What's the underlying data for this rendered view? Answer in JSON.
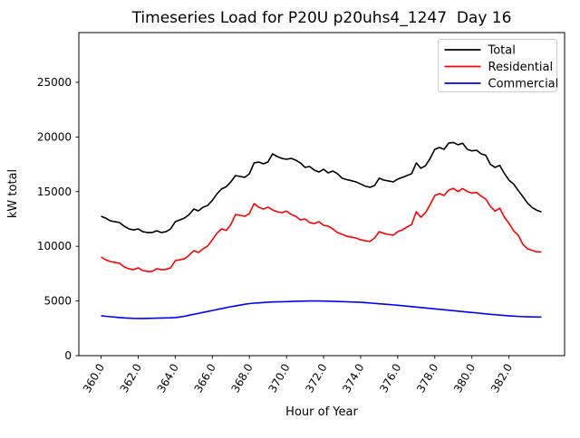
{
  "figure": {
    "title": "Timeseries Load for P20U p20uhs4_1247  Day 16",
    "xlabel": "Hour of Year",
    "ylabel": "kW total"
  },
  "chart_data": {
    "type": "line",
    "title": "Timeseries Load for P20U p20uhs4_1247  Day 16",
    "xlabel": "Hour of Year",
    "ylabel": "kW total",
    "xlim": [
      358.8,
      385.0
    ],
    "ylim": [
      0,
      29550
    ],
    "grid": false,
    "legend_position": "upper right",
    "xticks": {
      "values": [
        360,
        362,
        364,
        366,
        368,
        370,
        372,
        374,
        376,
        378,
        380,
        382
      ],
      "labels": [
        "360.0",
        "362.0",
        "364.0",
        "366.0",
        "368.0",
        "370.0",
        "372.0",
        "374.0",
        "376.0",
        "378.0",
        "380.0",
        "382.0"
      ]
    },
    "yticks": {
      "values": [
        0,
        5000,
        10000,
        15000,
        20000,
        25000
      ],
      "labels": [
        "0",
        "5000",
        "10000",
        "15000",
        "20000",
        "25000"
      ]
    },
    "x": {
      "start": 360.0,
      "step": 0.25,
      "count": 96,
      "unit": "hour of year"
    },
    "series": [
      {
        "name": "Total",
        "color": "#000000",
        "values": [
          12750,
          12580,
          12330,
          12250,
          12170,
          11840,
          11590,
          11500,
          11590,
          11340,
          11260,
          11260,
          11420,
          11260,
          11340,
          11590,
          12250,
          12420,
          12580,
          12910,
          13410,
          13240,
          13580,
          13740,
          14200,
          14800,
          15250,
          15450,
          15900,
          16470,
          16390,
          16310,
          16640,
          17630,
          17710,
          17550,
          17710,
          18460,
          18210,
          18040,
          17960,
          18040,
          17880,
          17630,
          17220,
          17300,
          16970,
          16800,
          17050,
          16720,
          16890,
          16640,
          16230,
          16100,
          16000,
          15890,
          15700,
          15500,
          15400,
          15560,
          16230,
          16060,
          15980,
          15890,
          16150,
          16310,
          16470,
          16640,
          17630,
          17140,
          17380,
          18040,
          18870,
          19040,
          18870,
          19450,
          19500,
          19290,
          19430,
          18870,
          18730,
          18790,
          18460,
          18320,
          17490,
          17220,
          17410,
          16670,
          16050,
          15700,
          15100,
          14550,
          13950,
          13550,
          13300,
          13150
        ]
      },
      {
        "name": "Residential",
        "color": "#ff0000",
        "values": [
          9020,
          8770,
          8610,
          8520,
          8440,
          8110,
          7950,
          7860,
          8030,
          7780,
          7700,
          7700,
          7950,
          7860,
          7890,
          8030,
          8690,
          8770,
          8860,
          9190,
          9600,
          9440,
          9770,
          10020,
          10600,
          11200,
          11600,
          11450,
          12000,
          12910,
          12830,
          12750,
          13000,
          13910,
          13580,
          13410,
          13580,
          13330,
          13160,
          13080,
          13220,
          12910,
          12750,
          12420,
          12500,
          12170,
          12090,
          12250,
          11920,
          11840,
          11590,
          11260,
          11100,
          10930,
          10840,
          10760,
          10600,
          10510,
          10450,
          10760,
          11340,
          11180,
          11090,
          11010,
          11340,
          11510,
          11760,
          12000,
          13160,
          12660,
          13080,
          13820,
          14650,
          14820,
          14650,
          15150,
          15300,
          15010,
          15290,
          15010,
          14870,
          14930,
          14590,
          14320,
          13640,
          13220,
          13490,
          12660,
          12110,
          11420,
          11010,
          10180,
          9770,
          9630,
          9490,
          9490
        ]
      },
      {
        "name": "Commercial",
        "color": "#0000ff",
        "values": [
          3650,
          3600,
          3560,
          3520,
          3480,
          3450,
          3430,
          3410,
          3400,
          3400,
          3410,
          3420,
          3430,
          3440,
          3450,
          3460,
          3480,
          3530,
          3600,
          3700,
          3780,
          3870,
          3960,
          4040,
          4130,
          4220,
          4300,
          4390,
          4480,
          4550,
          4620,
          4700,
          4760,
          4800,
          4830,
          4860,
          4890,
          4910,
          4920,
          4930,
          4940,
          4960,
          4970,
          4980,
          4990,
          5000,
          5000,
          5000,
          4990,
          4980,
          4970,
          4955,
          4940,
          4925,
          4910,
          4895,
          4880,
          4850,
          4815,
          4780,
          4745,
          4710,
          4680,
          4645,
          4610,
          4570,
          4530,
          4485,
          4445,
          4405,
          4365,
          4320,
          4280,
          4240,
          4195,
          4155,
          4115,
          4075,
          4030,
          3990,
          3950,
          3910,
          3865,
          3825,
          3780,
          3745,
          3710,
          3675,
          3640,
          3615,
          3590,
          3570,
          3555,
          3545,
          3535,
          3530
        ]
      }
    ]
  }
}
